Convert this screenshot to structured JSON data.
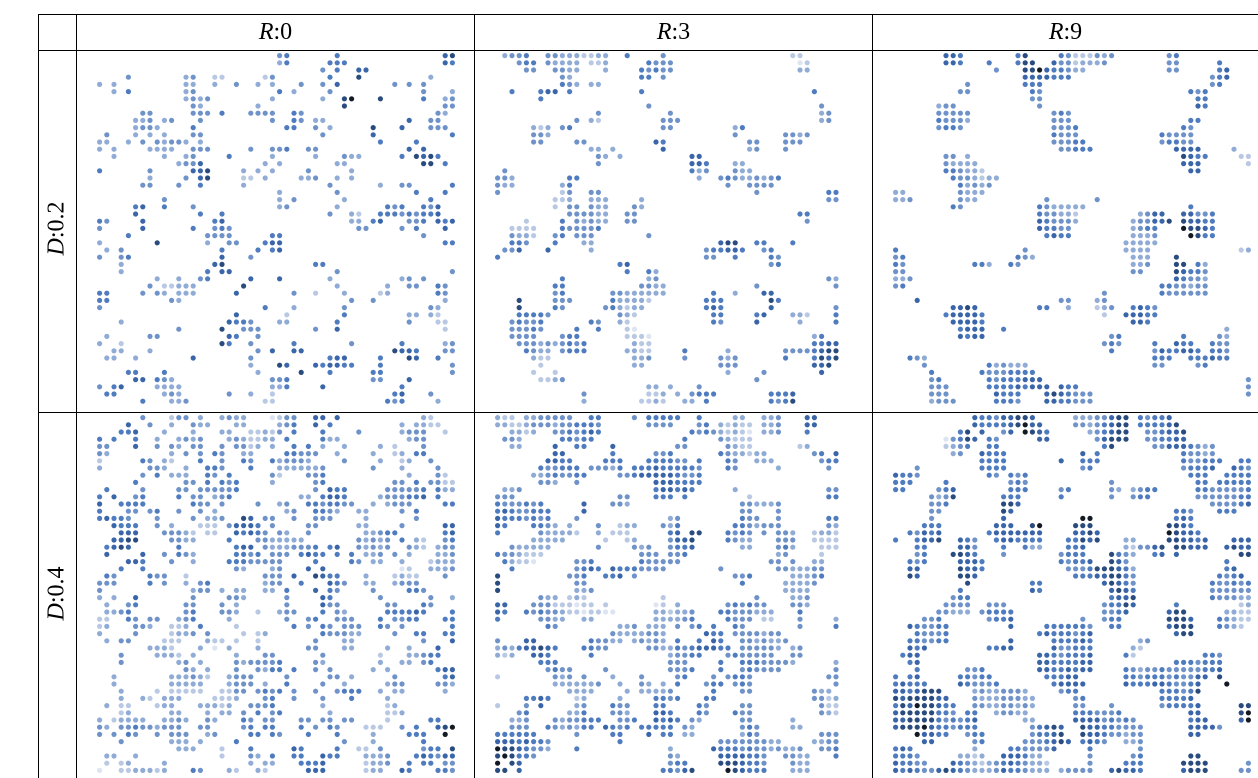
{
  "table": {
    "corner": "",
    "columns": [
      {
        "param": "R",
        "sep": ":",
        "value": "0"
      },
      {
        "param": "R",
        "sep": ":",
        "value": "3"
      },
      {
        "param": "R",
        "sep": ":",
        "value": "9"
      }
    ],
    "rows": [
      {
        "param": "D",
        "sep": ":",
        "value": "0.2"
      },
      {
        "param": "D",
        "sep": ":",
        "value": "0.4"
      }
    ]
  },
  "panels": [
    {
      "name": "panel-d0.2-r0",
      "occupancy": 0.2,
      "radius": 0
    },
    {
      "name": "panel-d0.2-r3",
      "occupancy": 0.2,
      "radius": 3
    },
    {
      "name": "panel-d0.2-r9",
      "occupancy": 0.2,
      "radius": 9
    },
    {
      "name": "panel-d0.4-r0",
      "occupancy": 0.4,
      "radius": 0
    },
    {
      "name": "panel-d0.4-r3",
      "occupancy": 0.4,
      "radius": 3
    },
    {
      "name": "panel-d0.4-r9",
      "occupancy": 0.4,
      "radius": 9
    }
  ],
  "palette": [
    "#dde5f2",
    "#b9c9e4",
    "#90acd6",
    "#6f93c9",
    "#4f7bbf",
    "#3a66a9",
    "#2a4b7d",
    "#141a24"
  ],
  "border_color": "#000000"
}
